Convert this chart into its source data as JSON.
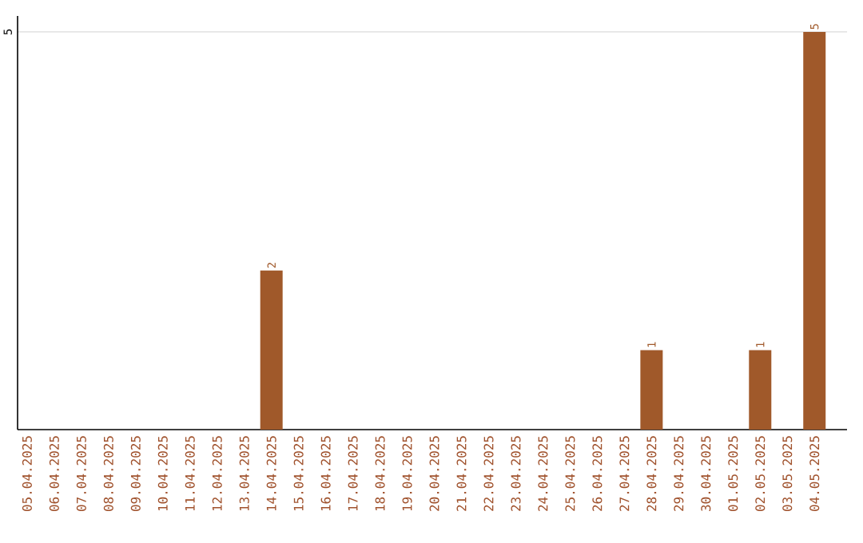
{
  "chart_data": {
    "type": "bar",
    "categories": [
      "05.04.2025",
      "06.04.2025",
      "07.04.2025",
      "08.04.2025",
      "09.04.2025",
      "10.04.2025",
      "11.04.2025",
      "12.04.2025",
      "13.04.2025",
      "14.04.2025",
      "15.04.2025",
      "16.04.2025",
      "17.04.2025",
      "18.04.2025",
      "19.04.2025",
      "20.04.2025",
      "21.04.2025",
      "22.04.2025",
      "23.04.2025",
      "24.04.2025",
      "25.04.2025",
      "26.04.2025",
      "27.04.2025",
      "28.04.2025",
      "29.04.2025",
      "30.04.2025",
      "01.05.2025",
      "02.05.2025",
      "03.05.2025",
      "04.05.2025"
    ],
    "values": [
      0,
      0,
      0,
      0,
      0,
      0,
      0,
      0,
      0,
      2,
      0,
      0,
      0,
      0,
      0,
      0,
      0,
      0,
      0,
      0,
      0,
      0,
      0,
      1,
      0,
      0,
      0,
      1,
      0,
      5
    ],
    "value_labels": [
      null,
      null,
      null,
      null,
      null,
      null,
      null,
      null,
      null,
      "2",
      null,
      null,
      null,
      null,
      null,
      null,
      null,
      null,
      null,
      null,
      null,
      null,
      null,
      "1",
      null,
      null,
      null,
      "1",
      null,
      "5"
    ],
    "color": "#a0592a",
    "ylim": [
      0,
      5.2
    ],
    "yticks": [
      5
    ],
    "grid": "y"
  }
}
